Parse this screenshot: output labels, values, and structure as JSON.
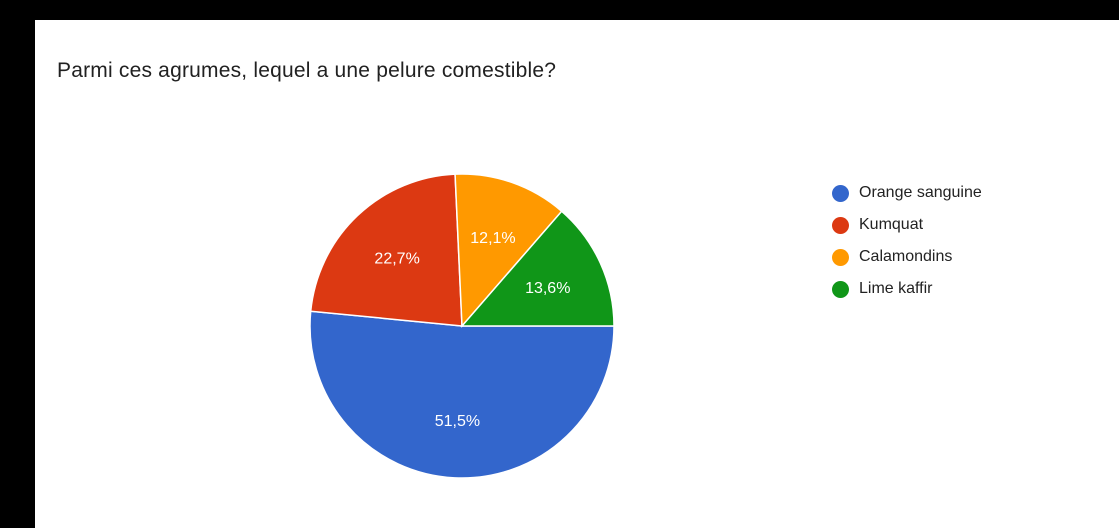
{
  "chart_data": {
    "type": "pie",
    "title": "Parmi ces agrumes, lequel a une pelure comestible?",
    "categories": [
      "Orange sanguine",
      "Kumquat",
      "Calamondins",
      "Lime kaffir"
    ],
    "values": [
      51.5,
      22.7,
      12.1,
      13.6
    ],
    "labels": [
      "51,5%",
      "22,7%",
      "12,1%",
      "13,6%"
    ],
    "colors": [
      "#3366cc",
      "#dc3912",
      "#ff9900",
      "#109618"
    ],
    "legend_position": "right"
  }
}
